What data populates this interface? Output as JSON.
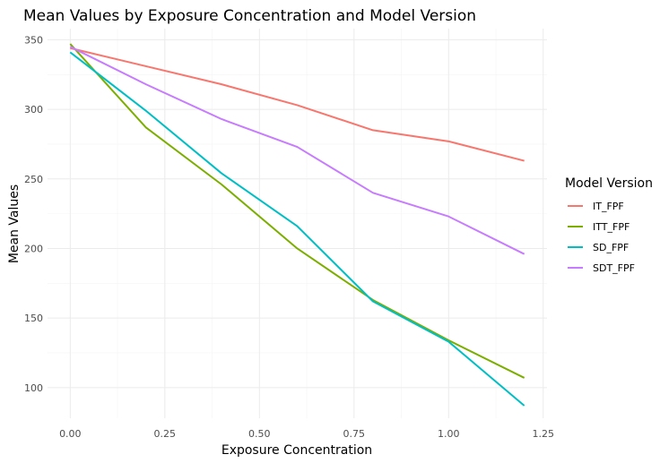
{
  "chart_data": {
    "type": "line",
    "title": "Mean Values by Exposure Concentration and Model Version",
    "xlabel": "Exposure Concentration",
    "ylabel": "Mean Values",
    "xlim": [
      -0.06,
      1.26
    ],
    "ylim": [
      78,
      358
    ],
    "x_ticks": [
      0.0,
      0.25,
      0.5,
      0.75,
      1.0,
      1.25
    ],
    "x_tick_labels": [
      "0.00",
      "0.25",
      "0.50",
      "0.75",
      "1.00",
      "1.25"
    ],
    "y_ticks": [
      100,
      150,
      200,
      250,
      300,
      350
    ],
    "y_tick_labels": [
      "100",
      "150",
      "200",
      "250",
      "300",
      "350"
    ],
    "grid": true,
    "legend": {
      "title": "Model Version",
      "placement": "right"
    },
    "x": [
      0.0,
      0.2,
      0.4,
      0.6,
      0.8,
      1.0,
      1.2
    ],
    "series": [
      {
        "name": "IT_FPF",
        "color": "#F8766D",
        "values": [
          344,
          331,
          318,
          303,
          285,
          277,
          263
        ]
      },
      {
        "name": "ITT_FPF",
        "color": "#7CAE00",
        "values": [
          347,
          287,
          246,
          200,
          163,
          134,
          107
        ]
      },
      {
        "name": "SD_FPF",
        "color": "#00BFC4",
        "values": [
          341,
          299,
          254,
          216,
          162,
          133,
          87
        ]
      },
      {
        "name": "SDT_FPF",
        "color": "#C77CFF",
        "values": [
          345,
          318,
          293,
          273,
          240,
          223,
          196
        ]
      }
    ]
  }
}
